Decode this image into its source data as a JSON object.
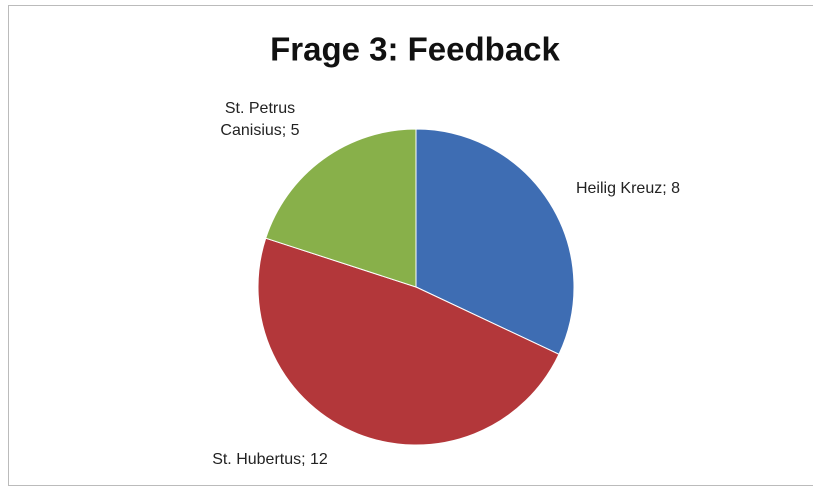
{
  "chart_data": {
    "type": "pie",
    "title": "Frage 3: Feedback",
    "labels": [
      "Heilig Kreuz; 8",
      "St. Hubertus; 12",
      "St. Petrus Canisius; 5"
    ],
    "values": [
      8,
      12,
      5
    ],
    "colors": [
      "#3e6db3",
      "#b3373a",
      "#88b04a"
    ]
  }
}
